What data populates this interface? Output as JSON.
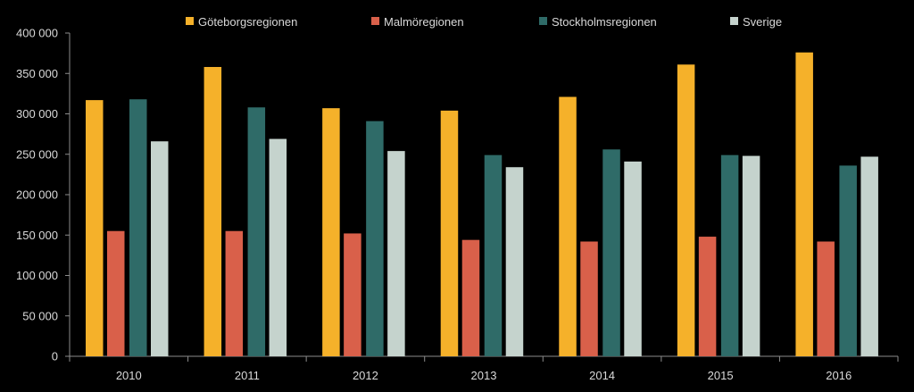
{
  "chart_data": {
    "type": "bar",
    "categories": [
      "2010",
      "2011",
      "2012",
      "2013",
      "2014",
      "2015",
      "2016"
    ],
    "series": [
      {
        "name": "Göteborgsregionen",
        "color": "#f5b12a",
        "values": [
          317000,
          358000,
          307000,
          304000,
          321000,
          361000,
          376000
        ]
      },
      {
        "name": "Malmöregionen",
        "color": "#d9604a",
        "values": [
          155000,
          155000,
          152000,
          144000,
          142000,
          148000,
          142000
        ]
      },
      {
        "name": "Stockholmsregionen",
        "color": "#2f6b68",
        "values": [
          318000,
          308000,
          291000,
          249000,
          256000,
          249000,
          236000
        ]
      },
      {
        "name": "Sverige",
        "color": "#c5d3cd",
        "values": [
          266000,
          269000,
          254000,
          234000,
          241000,
          248000,
          247000
        ]
      }
    ],
    "y_ticks": [
      "0",
      "50 000",
      "100 000",
      "150 000",
      "200 000",
      "250 000",
      "300 000",
      "350 000",
      "400 000"
    ],
    "ylim": [
      0,
      400000
    ],
    "legend_position": "top",
    "grid": false,
    "background": "#000000",
    "axis_color": "#8c8c8c",
    "text_color": "#d9d9d9"
  }
}
